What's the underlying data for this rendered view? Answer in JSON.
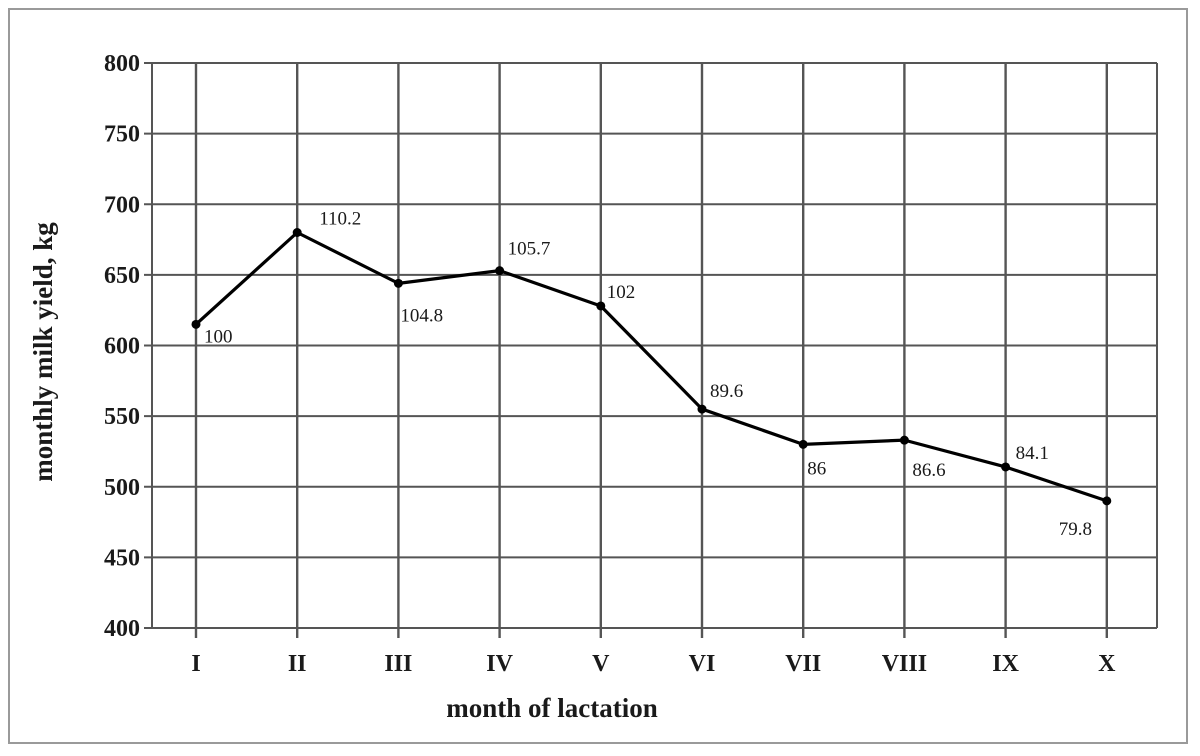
{
  "chart_data": {
    "type": "line",
    "title": "",
    "xlabel": "month of lactation",
    "ylabel": "monthly milk yield, kg",
    "categories": [
      "I",
      "II",
      "III",
      "IV",
      "V",
      "VI",
      "VII",
      "VIII",
      "IX",
      "X"
    ],
    "series": [
      {
        "values": [
          615,
          680,
          644,
          653,
          628,
          555,
          530,
          533,
          514,
          490
        ],
        "point_labels": [
          "100",
          "110.2",
          "104.8",
          "105.7",
          "102",
          "89.6",
          "86",
          "86.6",
          "84.1",
          "79.8"
        ]
      }
    ],
    "ylim": [
      400,
      800
    ],
    "yticks": [
      "400",
      "450",
      "500",
      "550",
      "600",
      "650",
      "700",
      "750",
      "800"
    ],
    "grid": true,
    "line_color": "#000000",
    "grid_color": "#555555"
  }
}
